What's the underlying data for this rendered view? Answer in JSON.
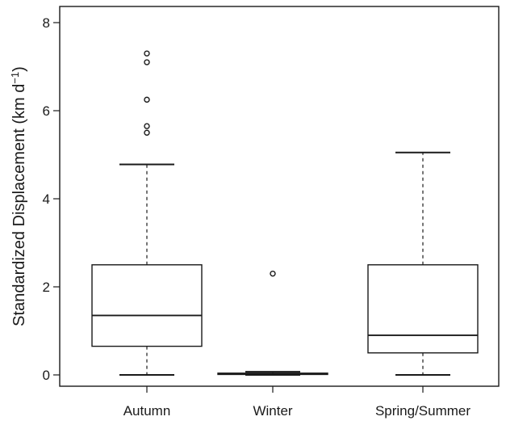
{
  "chart_data": {
    "type": "box",
    "title": "",
    "xlabel": "",
    "ylabel": "Standardized Displacement (km d",
    "ylabel_exp": "−1",
    "ylabel_close": ")",
    "ylim": [
      -0.2,
      8.4
    ],
    "yticks": [
      0,
      2,
      4,
      6,
      8
    ],
    "categories": [
      "Autumn",
      "Winter",
      "Spring/Summer"
    ],
    "boxes": [
      {
        "category": "Autumn",
        "whisker_low": 0.0,
        "q1": 0.65,
        "median": 1.35,
        "q3": 2.5,
        "whisker_high": 4.78,
        "outliers": [
          5.5,
          5.65,
          6.25,
          7.1,
          7.3
        ]
      },
      {
        "category": "Winter",
        "whisker_low": 0.0,
        "q1": 0.01,
        "median": 0.02,
        "q3": 0.04,
        "whisker_high": 0.07,
        "outliers": [
          2.3
        ]
      },
      {
        "category": "Spring/Summer",
        "whisker_low": 0.0,
        "q1": 0.5,
        "median": 0.9,
        "q3": 2.5,
        "whisker_high": 5.05,
        "outliers": []
      }
    ]
  }
}
